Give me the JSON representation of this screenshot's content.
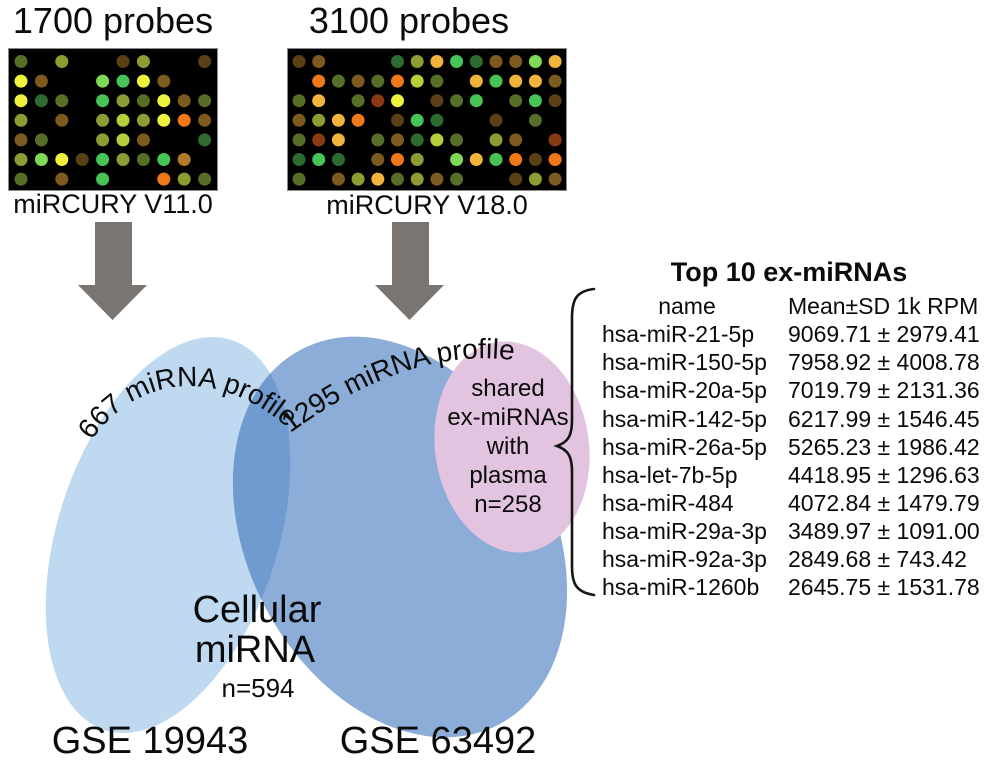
{
  "figure": {
    "panels": [
      {
        "probes": "1700 probes",
        "platform": "miRCURY V11.0",
        "grid": [
          [
            "DG",
            "",
            "OL",
            "",
            "",
            "DBr",
            "OL",
            "",
            "",
            "DBr"
          ],
          [
            "YE",
            "BR",
            "",
            "",
            "LG",
            "GR",
            "YE",
            "BR",
            "",
            ""
          ],
          [
            "YE",
            "TE",
            "DG",
            "",
            "GR",
            "OL",
            "DG",
            "YE",
            "BR",
            "DG"
          ],
          [
            "OL",
            "",
            "BR",
            "",
            "OL",
            "YG",
            "OL",
            "YE",
            "OR",
            "BR"
          ],
          [
            "BR",
            "DG",
            "",
            "",
            "OL",
            "YG",
            "BR",
            "",
            "",
            "TE"
          ],
          [
            "OL",
            "LG",
            "YE",
            "DBr",
            "GR",
            "OL",
            "DG",
            "GR",
            "OC",
            ""
          ],
          [
            "DG",
            "",
            "BR",
            "",
            "GR",
            "",
            "",
            "OR",
            "OL",
            "DG"
          ]
        ]
      },
      {
        "probes": "3100 probes",
        "platform": "miRCURY V18.0",
        "grid": [
          [
            "DBr",
            "BR",
            "",
            "",
            "",
            "TE",
            "OL",
            "AM",
            "GR",
            "TE",
            "BR",
            "BR",
            "LG",
            "AM"
          ],
          [
            "",
            "OR",
            "DG",
            "BR",
            "DG",
            "OR",
            "YG",
            "DG",
            "",
            "AM",
            "GR",
            "AM",
            "AM",
            "BR"
          ],
          [
            "DG",
            "AM",
            "",
            "DG",
            "DRd",
            "YE",
            "",
            "DBr",
            "DG",
            "GR",
            "",
            "DG",
            "GR",
            "DBr"
          ],
          [
            "BR",
            "OL",
            "AM",
            "OR",
            "",
            "DBr",
            "GR",
            "TE",
            "",
            "",
            "DBr",
            "",
            "DG",
            ""
          ],
          [
            "DG",
            "DRd",
            "AM",
            "",
            "DG",
            "BR",
            "TE",
            "YG",
            "DG",
            "",
            "OL",
            "BR",
            "",
            "DRd"
          ],
          [
            "TE",
            "GR",
            "TE",
            "",
            "BR",
            "OR",
            "OL",
            "",
            "LG",
            "AM",
            "GR",
            "OR",
            "DBr",
            "OR"
          ],
          [
            "DG",
            "",
            "BR",
            "OL",
            "AM",
            "DG",
            "OL",
            "BR",
            "DG",
            "",
            "",
            "DBr",
            "OL",
            "BR"
          ]
        ]
      }
    ],
    "venn": {
      "left_label": "667 miRNA profile",
      "right_label": "1295 miRNA profile",
      "overlap_line1": "Cellular",
      "overlap_line2": "miRNA",
      "overlap_count": "n=594",
      "left_dataset": "GSE 19943",
      "right_dataset": "GSE 63492",
      "shared_lines": [
        "shared",
        "ex-miRNAs",
        "with",
        "plasma",
        "n=258"
      ]
    },
    "table": {
      "title": "Top 10 ex-miRNAs",
      "columns": [
        "name",
        "Mean±SD 1k RPM"
      ],
      "rows": [
        {
          "name": "hsa-miR-21-5p",
          "value": "9069.71 ± 2979.41"
        },
        {
          "name": "hsa-miR-150-5p",
          "value": "7958.92 ± 4008.78"
        },
        {
          "name": "hsa-miR-20a-5p",
          "value": "7019.79 ± 2131.36"
        },
        {
          "name": "hsa-miR-142-5p",
          "value": "6217.99 ± 1546.45"
        },
        {
          "name": "hsa-miR-26a-5p",
          "value": "5265.23 ± 1986.42"
        },
        {
          "name": "hsa-let-7b-5p",
          "value": "4418.95 ± 1296.63"
        },
        {
          "name": "hsa-miR-484",
          "value": "4072.84 ± 1479.79"
        },
        {
          "name": "hsa-miR-29a-3p",
          "value": "3489.97 ± 1091.00"
        },
        {
          "name": "hsa-miR-92a-3p",
          "value": "2849.68 ± 743.42"
        },
        {
          "name": "hsa-miR-1260b",
          "value": "2645.75 ± 1531.78"
        }
      ]
    },
    "colors": {
      "left_ellipse": "#bed9f0",
      "right_ellipse": "#8badd8",
      "overlap": "#6f9bd0",
      "shared_ellipse": "#e2c4e0",
      "arrow": "#7b7572",
      "brace": "#151515",
      "dot_palette": {
        "DG": "#566e28",
        "TE": "#2e6b30",
        "OL": "#8d9c33",
        "YG": "#b5cf3a",
        "YE": "#eef23d",
        "GR": "#46c556",
        "LG": "#7ed957",
        "AM": "#f2b33d",
        "OR": "#f07818",
        "OC": "#b07c2a",
        "BR": "#7d5a1e",
        "DBr": "#5a4014",
        "DRd": "#8a3a12"
      }
    }
  }
}
